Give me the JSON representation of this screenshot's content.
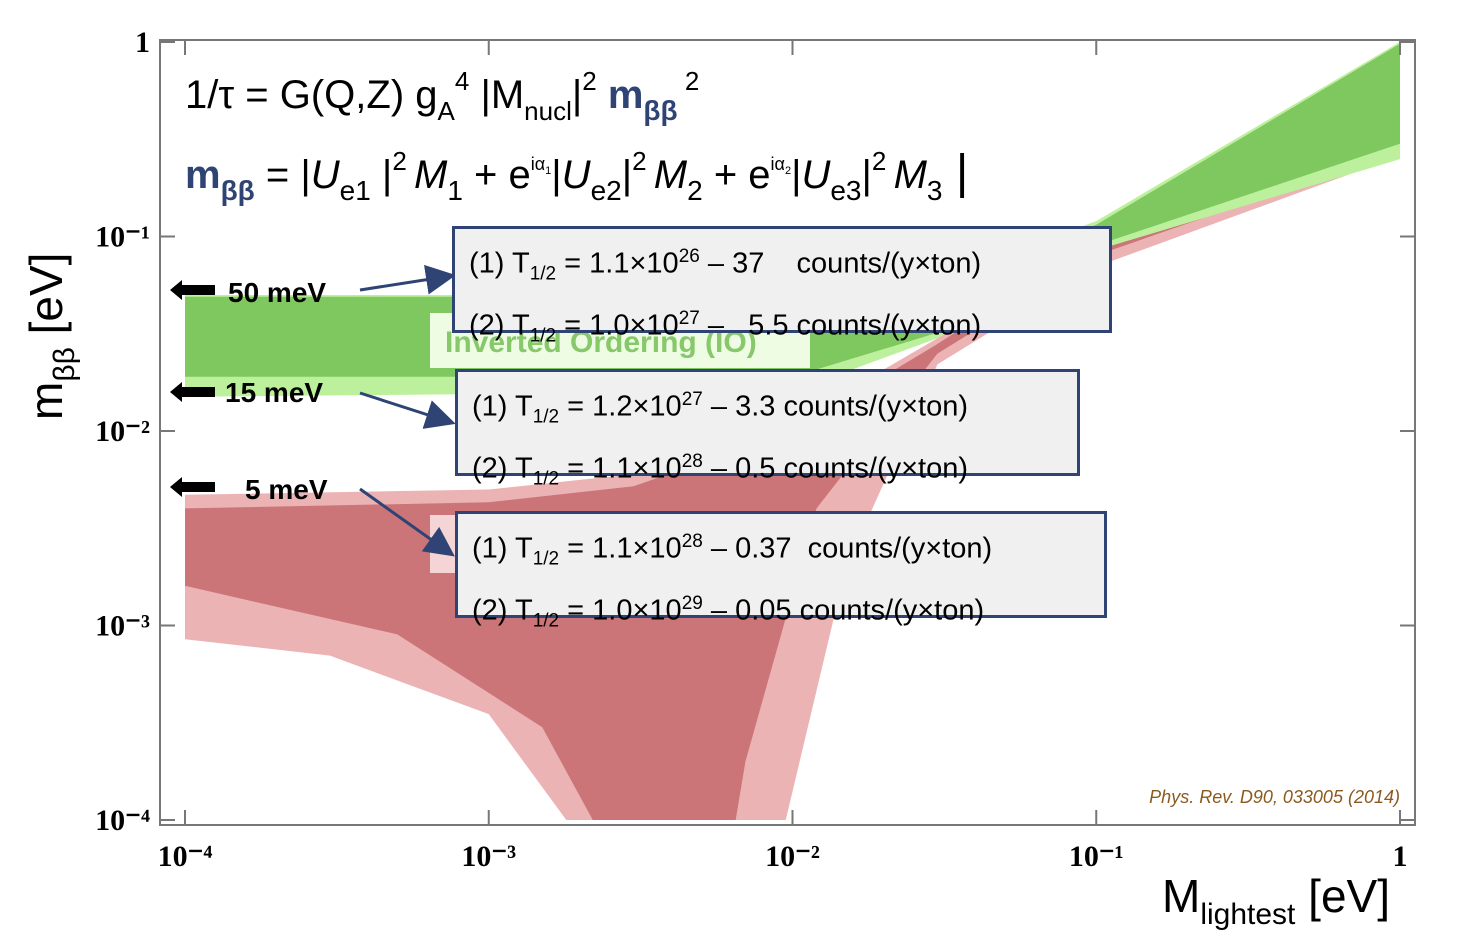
{
  "chart_data": {
    "type": "area",
    "xscale": "log",
    "yscale": "log",
    "xlim": [
      0.0001,
      1
    ],
    "ylim": [
      0.0001,
      1
    ],
    "xticks": [
      {
        "value": 0.0001,
        "label": "10⁻⁴"
      },
      {
        "value": 0.001,
        "label": "10⁻³"
      },
      {
        "value": 0.01,
        "label": "10⁻²"
      },
      {
        "value": 0.1,
        "label": "10⁻¹"
      },
      1
    ],
    "yticks": [
      {
        "value": 0.0001,
        "label": "10⁻⁴"
      },
      {
        "value": 0.001,
        "label": "10⁻³"
      },
      {
        "value": 0.01,
        "label": "10⁻²"
      },
      {
        "value": 0.1,
        "label": "10⁻¹"
      },
      1
    ],
    "x_label": [
      "M",
      "lightest",
      " [eV]"
    ],
    "y_label": [
      "m",
      "ββ",
      " [eV]"
    ],
    "series": [
      {
        "color": "#ecb3b5",
        "x": [
          0.0001,
          0.001,
          0.003,
          0.01,
          0.03,
          0.1,
          1,
          1,
          0.1,
          0.03,
          0.015,
          0.0095,
          0.0018,
          0.001,
          0.0003,
          0.0001
        ],
        "values": [
          0.0047,
          0.005,
          0.006,
          0.011,
          0.03,
          0.1,
          1,
          0.26,
          0.07,
          0.022,
          0.002,
          0.0001,
          0.0001,
          0.00035,
          0.0007,
          0.00085
        ]
      },
      {
        "color": "#cc7578",
        "x": [
          0.0001,
          0.001,
          0.003,
          0.01,
          0.03,
          0.1,
          1,
          1,
          0.1,
          0.03,
          0.012,
          0.007,
          0.0065,
          0.0022,
          0.0015,
          0.0005,
          0.0001
        ],
        "values": [
          0.004,
          0.0043,
          0.0052,
          0.01,
          0.028,
          0.095,
          0.95,
          0.28,
          0.08,
          0.025,
          0.004,
          0.0002,
          0.0001,
          0.0001,
          0.0003,
          0.0009,
          0.0016
        ]
      },
      {
        "color": "#bdf09c",
        "x": [
          0.0001,
          0.01,
          0.03,
          0.1,
          1,
          1,
          0.1,
          0.03,
          0.01,
          0.0001
        ],
        "values": [
          0.05,
          0.05,
          0.06,
          0.12,
          1,
          0.25,
          0.085,
          0.03,
          0.016,
          0.015
        ]
      },
      {
        "color": "#7fc860",
        "x": [
          0.0001,
          0.01,
          0.03,
          0.1,
          1,
          1,
          0.1,
          0.03,
          0.01,
          0.0001
        ],
        "values": [
          0.049,
          0.049,
          0.058,
          0.115,
          0.98,
          0.3,
          0.09,
          0.032,
          0.019,
          0.019
        ]
      }
    ],
    "formula_1": [
      "1/τ = G(Q,Z) g",
      "A",
      "4",
      " |M",
      "nucl",
      "|",
      "2",
      " m",
      "ββ",
      " 2"
    ],
    "formula_2": [
      "m",
      "ββ",
      " = |",
      "U",
      "e1",
      " |",
      "2 ",
      "M",
      "1",
      " + e",
      "iα",
      "1",
      "|",
      "U",
      "e2",
      "|",
      "2 ",
      "M",
      "2",
      " + e",
      "iα",
      "2",
      "|",
      "U",
      "e3",
      "|",
      "2 ",
      "M",
      "3",
      " |"
    ],
    "region_label": "Inverted Ordering (IO)",
    "annotations": [
      "50 meV",
      "15 meV",
      "5 meV"
    ],
    "boxes": [
      [
        [
          "(1) T",
          "1/2",
          " = 1.1×10",
          "26",
          " – 37    counts/(y×ton)"
        ],
        [
          "(2) T",
          "1/2",
          " = 1.0×10",
          "27",
          " –   5.5 counts/(y×ton)"
        ]
      ],
      [
        [
          "(1) T",
          "1/2",
          " = 1.2×10",
          "27",
          " – 3.3 counts/(y×ton)"
        ],
        [
          "(2) T",
          "1/2",
          " = 1.1×10",
          "28",
          " – 0.5 counts/(y×ton)"
        ]
      ],
      [
        [
          "(1) T",
          "1/2",
          " = 1.1×10",
          "28",
          " – 0.37  counts/(y×ton)"
        ],
        [
          "(2) T",
          "1/2",
          " = 1.0×10",
          "29",
          " – 0.05 counts/(y×ton)"
        ]
      ]
    ],
    "citation": "Phys. Rev. D90, 033005 (2014)"
  }
}
